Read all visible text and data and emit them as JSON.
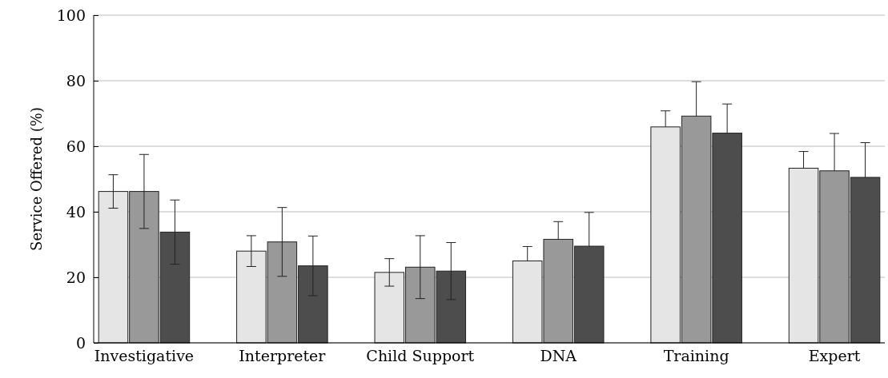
{
  "chart_data": {
    "type": "bar",
    "ylabel": "Service Offered (%)",
    "categories": [
      "Investigative",
      "Interpreter",
      "Child Support",
      "DNA",
      "Training",
      "Expert"
    ],
    "series": [
      {
        "color": "#e5e5e5",
        "values": [
          46.2,
          28,
          21.5,
          25,
          65.9,
          53.3
        ],
        "errors": [
          5.1,
          4.7,
          4.2,
          [
            25,
            29.4
          ],
          [
            65.9,
            70.8
          ],
          [
            53.3,
            58.4
          ]
        ]
      },
      {
        "color": "#999999",
        "values": [
          46.2,
          30.8,
          23.1,
          31.6,
          69.2,
          52.5
        ],
        "errors": [
          11.3,
          10.5,
          9.6,
          [
            31.6,
            37
          ],
          [
            69.2,
            79.7
          ],
          [
            52.5,
            63.9
          ]
        ]
      },
      {
        "color": "#4d4d4d",
        "values": [
          33.8,
          23.5,
          21.9,
          29.5,
          64,
          50.5
        ],
        "errors": [
          9.8,
          9.1,
          8.7,
          [
            29.5,
            39.8
          ],
          [
            64,
            72.9
          ],
          [
            50.5,
            61.1
          ]
        ]
      }
    ],
    "ylim": [
      0,
      100
    ],
    "yticks": [
      0,
      20,
      40,
      60,
      80,
      100
    ],
    "grid": "y"
  }
}
